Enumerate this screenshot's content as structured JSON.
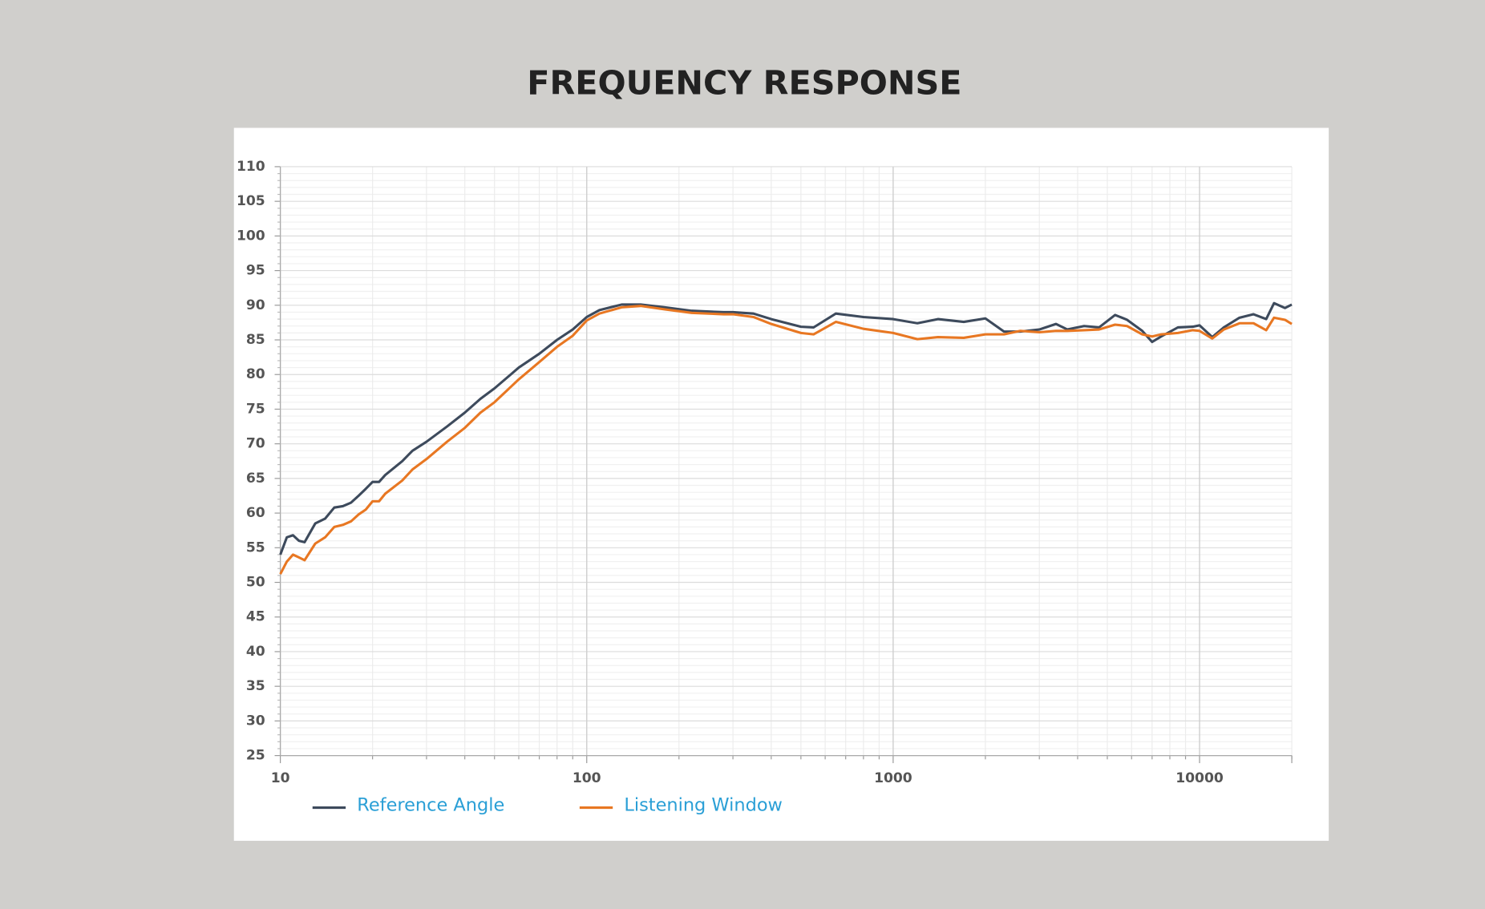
{
  "chart_data": {
    "type": "line",
    "title": "FREQUENCY RESPONSE",
    "xscale": "log",
    "grid": true,
    "legend": "bottom-left",
    "xlim": [
      10,
      20000
    ],
    "xticks": [
      10,
      100,
      1000,
      10000
    ],
    "ylim": [
      25,
      110
    ],
    "yticks": [
      25,
      30,
      35,
      40,
      45,
      50,
      55,
      60,
      65,
      70,
      75,
      80,
      85,
      90,
      95,
      100,
      105,
      110
    ],
    "x": [
      10,
      10.5,
      11,
      11.5,
      12,
      13,
      14,
      15,
      16,
      17,
      18,
      19,
      20,
      21,
      22,
      25,
      27,
      30,
      35,
      40,
      45,
      50,
      60,
      70,
      80,
      90,
      100,
      110,
      130,
      150,
      180,
      220,
      280,
      300,
      350,
      400,
      500,
      550,
      650,
      800,
      1000,
      1200,
      1400,
      1700,
      2000,
      2300,
      2600,
      3000,
      3400,
      3700,
      4200,
      4700,
      5300,
      5800,
      6500,
      7000,
      7500,
      8500,
      9500,
      10000,
      11000,
      12000,
      13500,
      15000,
      16500,
      17500,
      19000,
      20000
    ],
    "series": [
      {
        "name": "Reference Angle",
        "color": "#3d4a5c",
        "values": [
          54,
          56.5,
          56.8,
          56,
          55.8,
          58.5,
          59.2,
          60.8,
          61,
          61.5,
          62.5,
          63.5,
          64.5,
          64.5,
          65.5,
          67.5,
          69,
          70.3,
          72.5,
          74.5,
          76.5,
          78,
          81,
          83,
          85,
          86.5,
          88.3,
          89.3,
          90.1,
          90.1,
          89.7,
          89.2,
          89,
          89,
          88.8,
          88,
          86.9,
          86.8,
          88.8,
          88.3,
          88,
          87.4,
          88,
          87.6,
          88.1,
          86.2,
          86.2,
          86.5,
          87.3,
          86.5,
          87,
          86.8,
          88.6,
          87.9,
          86.3,
          84.7,
          85.5,
          86.8,
          86.9,
          87.1,
          85.4,
          86.8,
          88.2,
          88.7,
          88,
          90.3,
          89.6,
          90.1
        ]
      },
      {
        "name": "Listening Window",
        "color": "#e87722",
        "values": [
          51.2,
          53,
          54,
          53.6,
          53.2,
          55.6,
          56.5,
          58,
          58.3,
          58.8,
          59.8,
          60.5,
          61.7,
          61.7,
          62.8,
          64.7,
          66.3,
          67.8,
          70.3,
          72.3,
          74.5,
          76,
          79.3,
          81.8,
          84,
          85.6,
          87.8,
          88.8,
          89.7,
          89.9,
          89.4,
          88.9,
          88.7,
          88.7,
          88.3,
          87.3,
          86,
          85.8,
          87.6,
          86.6,
          86,
          85.1,
          85.4,
          85.3,
          85.8,
          85.8,
          86.3,
          86.1,
          86.3,
          86.3,
          86.4,
          86.5,
          87.2,
          87,
          85.8,
          85.5,
          85.8,
          86,
          86.4,
          86.3,
          85.2,
          86.5,
          87.4,
          87.4,
          86.4,
          88.2,
          87.9,
          87.3
        ]
      }
    ]
  }
}
